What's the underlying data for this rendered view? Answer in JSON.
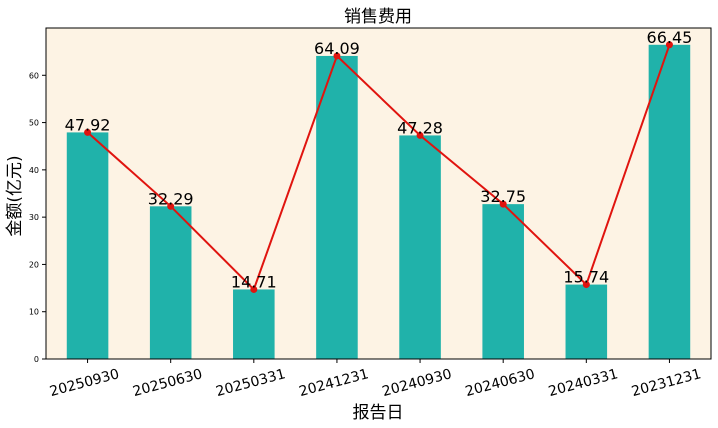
{
  "chart_data": {
    "type": "bar",
    "title": "销售费用",
    "xlabel": "报告日",
    "ylabel": "金额(亿元)",
    "categories": [
      "20250930",
      "20250630",
      "20250331",
      "20241231",
      "20240930",
      "20240630",
      "20240331",
      "20231231"
    ],
    "series": [
      {
        "values": [
          47.92,
          32.29,
          14.71,
          64.09,
          47.28,
          32.75,
          15.74,
          66.45
        ]
      }
    ],
    "data_labels": [
      "47.92",
      "32.29",
      "14.71",
      "64.09",
      "47.28",
      "32.75",
      "15.74",
      "66.45"
    ],
    "line_overlay": true,
    "ylim": [
      0,
      70
    ],
    "yticks": [
      0,
      10,
      20,
      30,
      40,
      50,
      60
    ],
    "grid": false,
    "colors": {
      "bar": "#20b2aa",
      "line": "#e0140f",
      "plot_bg": "#fdf3e4",
      "axis": "#000000"
    }
  }
}
